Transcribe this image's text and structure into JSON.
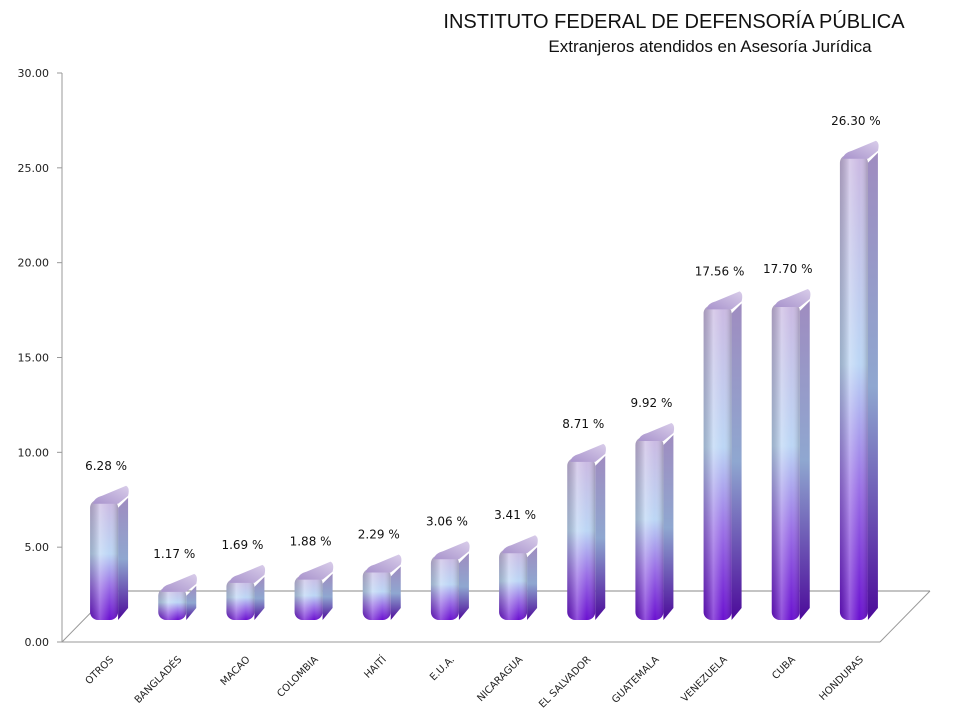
{
  "chart_data": {
    "type": "bar",
    "title": "INSTITUTO FEDERAL DE DEFENSORÍA PÚBLICA",
    "subtitle": "Extranjeros atendidos en Asesoría Jurídica",
    "xlabel": "",
    "ylabel": "",
    "ylim": [
      0,
      30
    ],
    "yticks": [
      "0.00",
      "5.00",
      "10.00",
      "15.00",
      "20.00",
      "25.00",
      "30.00"
    ],
    "categories": [
      "OTROS",
      "BANGLADÉS",
      "MACAO",
      "COLOMBIA",
      "HAITÍ",
      "E.U.A.",
      "NICARAGUA",
      "EL SALVADOR",
      "GUATEMALA",
      "VENEZUELA",
      "CUBA",
      "HONDURAS"
    ],
    "values": [
      6.28,
      1.17,
      1.69,
      1.88,
      2.29,
      3.06,
      3.41,
      8.71,
      9.92,
      17.56,
      17.7,
      26.3
    ],
    "value_labels": [
      "6.28 %",
      "1.17 %",
      "1.69 %",
      "1.88 %",
      "2.29 %",
      "3.06 %",
      "3.41 %",
      "8.71 %",
      "9.92 %",
      "17.56 %",
      "17.70 %",
      "26.30 %"
    ],
    "grid": false,
    "legend": "none",
    "colors": {
      "bar_bottom": "#6a10d0",
      "bar_mid": "#bcd6f5",
      "bar_top": "#c9b7e0",
      "cap": "#b9a6d6"
    }
  }
}
